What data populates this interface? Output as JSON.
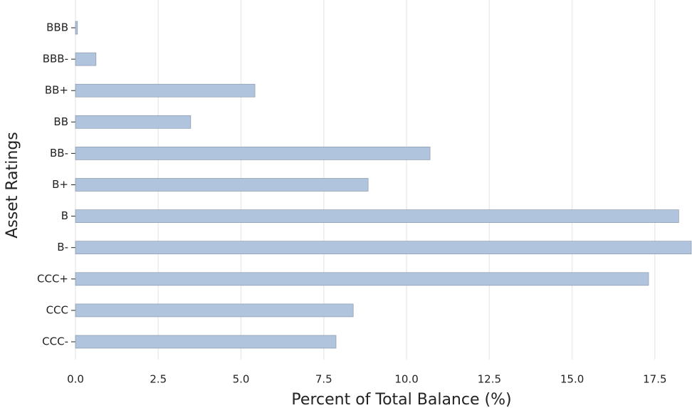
{
  "chart_data": {
    "type": "barh",
    "xlabel": "Percent of Total Balance (%)",
    "ylabel": "Asset Ratings",
    "categories": [
      "BBB",
      "BBB-",
      "BB+",
      "BB",
      "BB-",
      "B+",
      "B",
      "B-",
      "CCC+",
      "CCC",
      "CCC-"
    ],
    "values": [
      0.06,
      0.62,
      5.42,
      3.48,
      10.71,
      8.84,
      18.22,
      18.6,
      17.31,
      8.39,
      7.87
    ],
    "color": "#b0c4de",
    "xlim": [
      0,
      18.6
    ],
    "xticks": [
      {
        "value": 0,
        "label": "0.0"
      },
      2.5,
      {
        "value": 5,
        "label": "5.0"
      },
      7.5,
      {
        "value": 10,
        "label": "10.0"
      },
      12.5,
      {
        "value": 15,
        "label": "15.0"
      },
      17.5
    ],
    "grid": true
  }
}
